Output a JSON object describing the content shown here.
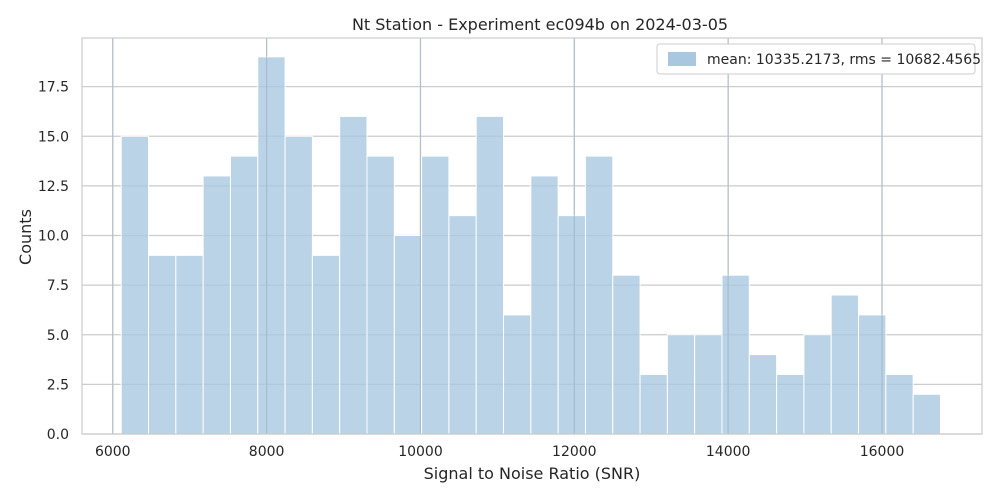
{
  "chart_data": {
    "type": "bar",
    "title": "Nt Station - Experiment ec094b on 2024-03-05",
    "xlabel": "Signal to Noise Ratio (SNR)",
    "ylabel": "Counts",
    "xlim": [
      5600,
      17300
    ],
    "ylim": [
      0,
      19.95
    ],
    "grid": true,
    "legend_position": "top-right",
    "bar_color": "#a9c8e0",
    "edge_color": "#ffffff",
    "grid_color": "#cccccc",
    "frame_color": "#cccccc",
    "x_ticks": [
      {
        "value": 6000,
        "label": "6000"
      },
      {
        "value": 8000,
        "label": "8000"
      },
      {
        "value": 10000,
        "label": "10000"
      },
      {
        "value": 12000,
        "label": "12000"
      },
      {
        "value": 14000,
        "label": "14000"
      },
      {
        "value": 16000,
        "label": "16000"
      }
    ],
    "y_ticks": [
      {
        "value": 0,
        "label": "0.0"
      },
      {
        "value": 2.5,
        "label": "2.5"
      },
      {
        "value": 5,
        "label": "5.0"
      },
      {
        "value": 7.5,
        "label": "7.5"
      },
      {
        "value": 10,
        "label": "10.0"
      },
      {
        "value": 12.5,
        "label": "12.5"
      },
      {
        "value": 15,
        "label": "15.0"
      },
      {
        "value": 17.5,
        "label": "17.5"
      }
    ],
    "bin_edges": [
      6110,
      6465,
      6820,
      7175,
      7530,
      7885,
      8240,
      8595,
      8950,
      9305,
      9660,
      10015,
      10370,
      10725,
      11080,
      11435,
      11790,
      12145,
      12500,
      12855,
      13210,
      13565,
      13920,
      14275,
      14630,
      14985,
      15340,
      15695,
      16050,
      16405,
      16760
    ],
    "counts": [
      15,
      9,
      9,
      13,
      14,
      19,
      15,
      9,
      16,
      14,
      10,
      14,
      11,
      16,
      6,
      13,
      11,
      14,
      8,
      3,
      5,
      5,
      8,
      4,
      3,
      5,
      7,
      6,
      3,
      2
    ],
    "series": [
      {
        "name": "mean: 10335.2173, rms = 10682.4565"
      }
    ]
  }
}
